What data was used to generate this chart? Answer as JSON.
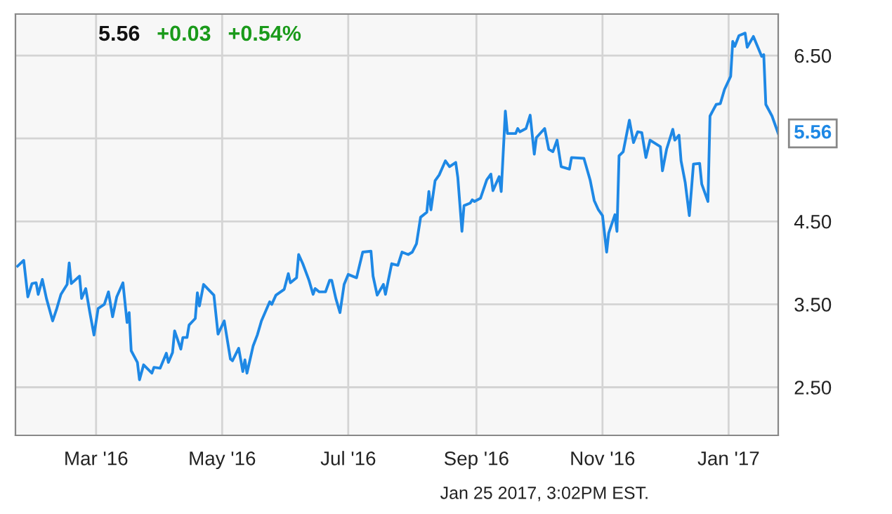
{
  "chart_data": {
    "type": "line",
    "x": [
      "2016-01-23",
      "2016-01-26",
      "2016-01-28",
      "2016-01-30",
      "2016-02-01",
      "2016-02-02",
      "2016-02-04",
      "2016-02-06",
      "2016-02-09",
      "2016-02-11",
      "2016-02-13",
      "2016-02-16",
      "2016-02-17",
      "2016-02-18",
      "2016-02-22",
      "2016-02-23",
      "2016-02-25",
      "2016-02-27",
      "2016-02-29",
      "2016-03-02",
      "2016-03-05",
      "2016-03-07",
      "2016-03-09",
      "2016-03-11",
      "2016-03-14",
      "2016-03-16",
      "2016-03-17",
      "2016-03-18",
      "2016-03-21",
      "2016-03-22",
      "2016-03-24",
      "2016-03-28",
      "2016-03-29",
      "2016-04-01",
      "2016-04-04",
      "2016-04-05",
      "2016-04-07",
      "2016-04-08",
      "2016-04-11",
      "2016-04-12",
      "2016-04-14",
      "2016-04-15",
      "2016-04-18",
      "2016-04-19",
      "2016-04-20",
      "2016-04-22",
      "2016-04-27",
      "2016-04-29",
      "2016-05-02",
      "2016-05-05",
      "2016-05-06",
      "2016-05-09",
      "2016-05-11",
      "2016-05-12",
      "2016-05-13",
      "2016-05-16",
      "2016-05-18",
      "2016-05-20",
      "2016-05-24",
      "2016-05-25",
      "2016-05-27",
      "2016-05-31",
      "2016-06-02",
      "2016-06-03",
      "2016-06-06",
      "2016-06-07",
      "2016-06-09",
      "2016-06-12",
      "2016-06-14",
      "2016-06-15",
      "2016-06-17",
      "2016-06-20",
      "2016-06-22",
      "2016-06-23",
      "2016-06-25",
      "2016-06-27",
      "2016-06-29",
      "2016-07-01",
      "2016-07-05",
      "2016-07-08",
      "2016-07-12",
      "2016-07-13",
      "2016-07-15",
      "2016-07-18",
      "2016-07-19",
      "2016-07-22",
      "2016-07-25",
      "2016-07-27",
      "2016-07-30",
      "2016-08-01",
      "2016-08-03",
      "2016-08-05",
      "2016-08-08",
      "2016-08-09",
      "2016-08-10",
      "2016-08-12",
      "2016-08-14",
      "2016-08-17",
      "2016-08-19",
      "2016-08-22",
      "2016-08-23",
      "2016-08-25",
      "2016-08-26",
      "2016-08-29",
      "2016-08-30",
      "2016-08-31",
      "2016-09-03",
      "2016-09-06",
      "2016-09-08",
      "2016-09-09",
      "2016-09-12",
      "2016-09-13",
      "2016-09-15",
      "2016-09-16",
      "2016-09-20",
      "2016-09-21",
      "2016-09-22",
      "2016-09-25",
      "2016-09-27",
      "2016-09-29",
      "2016-09-30",
      "2016-10-04",
      "2016-10-06",
      "2016-10-08",
      "2016-10-10",
      "2016-10-12",
      "2016-10-16",
      "2016-10-17",
      "2016-10-23",
      "2016-10-26",
      "2016-10-28",
      "2016-10-30",
      "2016-11-01",
      "2016-11-03",
      "2016-11-04",
      "2016-11-07",
      "2016-11-08",
      "2016-11-09",
      "2016-11-11",
      "2016-11-14",
      "2016-11-16",
      "2016-11-18",
      "2016-11-20",
      "2016-11-22",
      "2016-11-24",
      "2016-11-29",
      "2016-11-30",
      "2016-12-02",
      "2016-12-05",
      "2016-12-06",
      "2016-12-08",
      "2016-12-09",
      "2016-12-11",
      "2016-12-13",
      "2016-12-15",
      "2016-12-18",
      "2016-12-19",
      "2016-12-22",
      "2016-12-23",
      "2016-12-26",
      "2016-12-28",
      "2016-12-30",
      "2017-01-02",
      "2017-01-03",
      "2017-01-04",
      "2017-01-06",
      "2017-01-09",
      "2017-01-10",
      "2017-01-13",
      "2017-01-17",
      "2017-01-18",
      "2017-01-19",
      "2017-01-22",
      "2017-01-25"
    ],
    "series": [
      {
        "color": "#1e88e5",
        "values": [
          3.96,
          4.03,
          3.59,
          3.75,
          3.76,
          3.62,
          3.8,
          3.57,
          3.3,
          3.45,
          3.62,
          3.74,
          4.0,
          3.75,
          3.84,
          3.57,
          3.69,
          3.4,
          3.13,
          3.45,
          3.5,
          3.65,
          3.35,
          3.59,
          3.76,
          3.28,
          3.4,
          2.94,
          2.8,
          2.59,
          2.77,
          2.67,
          2.74,
          2.73,
          2.91,
          2.8,
          2.92,
          3.18,
          2.96,
          3.1,
          3.1,
          3.25,
          3.33,
          3.64,
          3.48,
          3.74,
          3.61,
          3.14,
          3.3,
          2.84,
          2.82,
          2.97,
          2.69,
          2.83,
          2.67,
          3.0,
          3.13,
          3.3,
          3.53,
          3.5,
          3.61,
          3.68,
          3.87,
          3.76,
          3.82,
          4.1,
          3.99,
          3.79,
          3.62,
          3.69,
          3.65,
          3.65,
          3.79,
          3.79,
          3.57,
          3.4,
          3.74,
          3.86,
          3.82,
          4.13,
          4.14,
          3.84,
          3.61,
          3.74,
          3.62,
          3.99,
          3.97,
          4.13,
          4.1,
          4.13,
          4.23,
          4.55,
          4.61,
          4.86,
          4.64,
          4.99,
          5.06,
          5.23,
          5.16,
          5.21,
          5.03,
          4.38,
          4.69,
          4.72,
          4.76,
          4.74,
          4.78,
          5.0,
          5.07,
          4.87,
          5.04,
          4.86,
          5.83,
          5.56,
          5.56,
          5.62,
          5.58,
          5.62,
          5.78,
          5.31,
          5.51,
          5.62,
          5.37,
          5.34,
          5.48,
          5.16,
          5.13,
          5.27,
          5.26,
          5.0,
          4.75,
          4.64,
          4.57,
          4.13,
          4.36,
          4.58,
          4.38,
          5.29,
          5.34,
          5.72,
          5.45,
          5.58,
          5.57,
          5.27,
          5.48,
          5.4,
          5.11,
          5.37,
          5.61,
          5.48,
          5.54,
          5.23,
          4.97,
          4.57,
          5.19,
          5.2,
          4.95,
          4.74,
          5.77,
          5.91,
          5.92,
          6.09,
          6.25,
          6.67,
          6.61,
          6.74,
          6.77,
          6.6,
          6.73,
          6.49,
          6.51,
          5.91,
          5.77,
          5.56
        ]
      }
    ],
    "xlim": [
      "2016-01-22",
      "2017-01-25"
    ],
    "xticks": [
      {
        "value": "2016-03-01",
        "label": "Mar '16"
      },
      {
        "value": "2016-05-01",
        "label": "May '16"
      },
      {
        "value": "2016-07-01",
        "label": "Jul '16"
      },
      {
        "value": "2016-09-01",
        "label": "Sep '16"
      },
      {
        "value": "2016-11-01",
        "label": "Nov '16"
      },
      {
        "value": "2017-01-01",
        "label": "Jan '17"
      }
    ],
    "ylim": [
      1.92,
      7.0
    ],
    "yticks": [
      {
        "value": 2.5,
        "label": "2.50"
      },
      {
        "value": 3.5,
        "label": "3.50"
      },
      {
        "value": 4.5,
        "label": "4.50"
      },
      {
        "value": 5.5,
        "label": null
      },
      {
        "value": 6.5,
        "label": "6.50"
      }
    ],
    "grid": true,
    "annotations": [
      "5.56",
      "+0.03",
      "+0.54%",
      "Jan 25 2017, 3:02PM EST.",
      {
        "text": "5.56",
        "x": "2017-01-25",
        "y": 5.56
      }
    ]
  }
}
